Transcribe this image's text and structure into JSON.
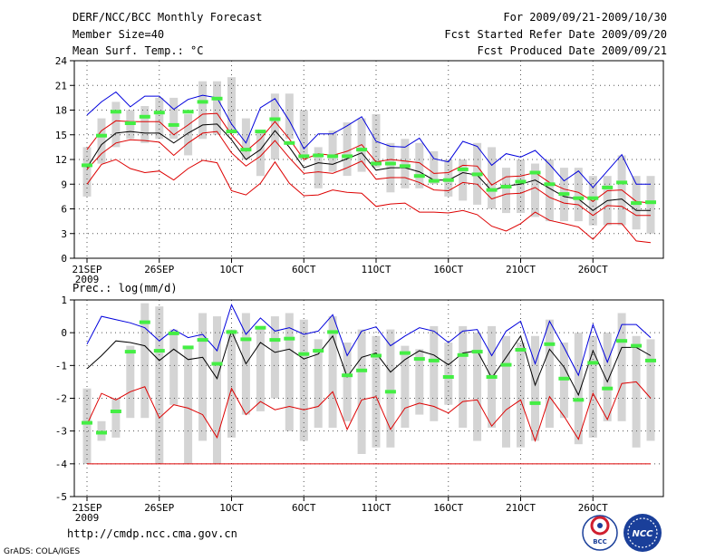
{
  "header": {
    "title": "DERF/NCC/BCC Monthly Forecast",
    "member_size": "Member Size=40",
    "variable": "Mean Surf. Temp.: °C",
    "period": "For 2009/09/21-2009/10/30",
    "started": "Fcst Started Refer Date 2009/09/20",
    "produced": "Fcst Produced Date 2009/09/21"
  },
  "footer": {
    "url": "http://cmdp.ncc.cma.gov.cn",
    "credit": "GrADS: COLA/IGES",
    "logo_bcc": "BCC",
    "logo_ncc": "NCC"
  },
  "colors": {
    "box": "#d4d4d4",
    "median": "#44ee44",
    "mean": "#000000",
    "upper": "#0000dd",
    "lower": "#dd0000",
    "grid": "#555555"
  },
  "chart_data": [
    {
      "type": "box-ensemble",
      "title": "Mean Surf. Temp.: °C",
      "ylim": [
        0,
        24
      ],
      "yticks": [
        "0",
        "3",
        "6",
        "9",
        "12",
        "15",
        "18",
        "21",
        "24"
      ],
      "x_tick_days": [
        1,
        6,
        11,
        16,
        21,
        26,
        31,
        36
      ],
      "xtick_labels": [
        "21SEP",
        "26SEP",
        "1OCT",
        "6OCT",
        "11OCT",
        "16OCT",
        "21OCT",
        "26OCT"
      ],
      "year_label": "2009",
      "days": 40,
      "box_low": [
        7.5,
        11.5,
        13.5,
        14.5,
        14,
        14.5,
        14.5,
        12.5,
        14.5,
        15,
        15.5,
        12,
        10,
        12,
        14.5,
        12,
        8.5,
        10.5,
        10,
        10.5,
        11,
        8,
        8.5,
        8.5,
        9,
        7.5,
        7,
        6.5,
        6,
        5.5,
        5.5,
        5,
        4.5,
        4.5,
        4.5,
        4,
        4,
        4,
        3.5,
        3
      ],
      "box_high": [
        13.5,
        17,
        19,
        18,
        18.5,
        19.5,
        19.5,
        17.5,
        21.5,
        21.5,
        22,
        17,
        15.5,
        20,
        20,
        18,
        13.5,
        15.5,
        16.5,
        17,
        17.5,
        14,
        14.5,
        14,
        13,
        12,
        12,
        14,
        13.5,
        11,
        12,
        11.5,
        12,
        11,
        11,
        10,
        10,
        12.5,
        10,
        10
      ],
      "median": [
        11.3,
        14.9,
        17.8,
        16.4,
        17.2,
        17.7,
        16.2,
        17.8,
        19,
        19.4,
        15.4,
        13.2,
        15.4,
        16.9,
        14,
        12.4,
        12.5,
        12.4,
        12.4,
        13.2,
        11.5,
        11.5,
        11.2,
        10,
        9.4,
        9.5,
        10.8,
        10.2,
        8.3,
        8.7,
        9.3,
        10.4,
        9,
        7.8,
        7.3,
        7.3,
        8.6,
        9.2,
        6.7,
        6.8
      ],
      "series": [
        {
          "name": "mean",
          "values": [
            11,
            13.8,
            15.2,
            15.4,
            15.2,
            15.2,
            14,
            15.2,
            16.2,
            16.3,
            14.4,
            12,
            13.2,
            15.5,
            13.5,
            11,
            11.6,
            11.4,
            12.1,
            12.8,
            10.7,
            11,
            11,
            10.5,
            9.5,
            9.5,
            10.4,
            10.1,
            8.2,
            8.8,
            9,
            9.5,
            8.5,
            7.5,
            7.2,
            5.8,
            7,
            7.2,
            5.8,
            5.8
          ]
        },
        {
          "name": "upper",
          "values": [
            17.4,
            19,
            20.2,
            18.4,
            19.7,
            19.7,
            18.1,
            19.3,
            19.8,
            19.5,
            16.3,
            14,
            18.3,
            19.4,
            16.7,
            13.3,
            15.1,
            15.1,
            16.1,
            17.2,
            14.2,
            13.6,
            13.5,
            14.6,
            12.1,
            11.7,
            14.2,
            13.6,
            11.3,
            12.7,
            12.3,
            13.1,
            11.4,
            9.4,
            10.6,
            8.6,
            10.6,
            12.6,
            9,
            9
          ]
        },
        {
          "name": "lower",
          "values": [
            9,
            11.4,
            12,
            10.9,
            10.4,
            10.6,
            9.5,
            10.9,
            11.9,
            11.6,
            8.2,
            7.7,
            9.1,
            11.7,
            9.1,
            7.6,
            7.7,
            8.3,
            8,
            7.9,
            6.3,
            6.6,
            6.7,
            5.6,
            5.6,
            5.5,
            5.8,
            5.3,
            3.9,
            3.3,
            4.2,
            5.6,
            4.6,
            4.2,
            3.8,
            2.3,
            4.2,
            4.2,
            2.1,
            1.9
          ]
        },
        {
          "name": "red_upper",
          "values": [
            13.2,
            15.5,
            16.7,
            16.6,
            16.6,
            16.6,
            15,
            16.2,
            17.5,
            17.6,
            15,
            13,
            14.5,
            16.6,
            14.5,
            12,
            12.7,
            12.5,
            13,
            13.8,
            11.7,
            12,
            11.8,
            11.6,
            10.3,
            10.4,
            11.3,
            11.2,
            8.9,
            9.9,
            10,
            10.4,
            9.2,
            8.4,
            8,
            6.9,
            8.2,
            8.3,
            6.9,
            6.7
          ]
        },
        {
          "name": "red_lower",
          "values": [
            10.8,
            12.7,
            14,
            14.4,
            14.3,
            14.1,
            12.5,
            14,
            15.2,
            15.4,
            12.8,
            11.2,
            12.4,
            14.3,
            12.2,
            10.3,
            10.5,
            10.3,
            11,
            11.8,
            9.6,
            9.8,
            9.8,
            9.2,
            8.3,
            8.2,
            9.2,
            9,
            7.2,
            7.8,
            7.9,
            8.6,
            7.4,
            6.7,
            6.5,
            5.2,
            6.4,
            6.3,
            5.2,
            5.2
          ]
        }
      ]
    },
    {
      "type": "box-ensemble",
      "title": "Prec.: log(mm/d)",
      "ylim": [
        -5,
        1
      ],
      "yticks": [
        "-5",
        "-4",
        "-3",
        "-2",
        "-1",
        "0",
        "1"
      ],
      "x_tick_days": [
        1,
        6,
        11,
        16,
        21,
        26,
        31,
        36
      ],
      "xtick_labels": [
        "21SEP",
        "26SEP",
        "1OCT",
        "6OCT",
        "11OCT",
        "16OCT",
        "21OCT",
        "26OCT"
      ],
      "year_label": "2009",
      "days": 40,
      "floor": -4,
      "box_low": [
        -4,
        -3.3,
        -3.2,
        -2.6,
        -2.6,
        -4,
        -2.2,
        -4,
        -3.3,
        -4,
        -3.2,
        -2.5,
        -2.4,
        -2,
        -3,
        -3.3,
        -2.9,
        -2.9,
        -2.7,
        -3.7,
        -3.5,
        -3.5,
        -2.9,
        -2.5,
        -2.7,
        -2.2,
        -2.9,
        -3.3,
        -2.9,
        -3.5,
        -3.5,
        -3.3,
        -2.9,
        -2.6,
        -3.4,
        -3.2,
        -2.7,
        -2.7,
        -3.5,
        -3.3
      ],
      "box_high": [
        -1.7,
        -2.7,
        -2,
        -0.4,
        0.9,
        0.8,
        0.1,
        -0.5,
        0.6,
        0.5,
        0.1,
        0.6,
        0.2,
        0.5,
        0.6,
        0.4,
        -0.2,
        0.5,
        -0.3,
        0.1,
        -0.1,
        0.1,
        -0.4,
        -0.5,
        0.2,
        -0.3,
        0.2,
        0,
        0.2,
        -0.1,
        -0.3,
        -0.1,
        0.4,
        -0.3,
        0,
        -0.1,
        0,
        0.6,
        -0.1,
        -0.2
      ],
      "median": [
        -2.75,
        -3.05,
        -2.4,
        -0.58,
        0.32,
        -0.55,
        -0.02,
        -0.45,
        -0.22,
        -0.95,
        0.02,
        -0.2,
        0.15,
        -0.22,
        -0.18,
        -0.65,
        -0.55,
        0.02,
        -1.3,
        -1.15,
        -0.7,
        -1.8,
        -0.62,
        -0.8,
        -0.85,
        -1.35,
        -0.68,
        -0.58,
        -1.35,
        -0.98,
        -0.52,
        -2.15,
        -0.35,
        -1.4,
        -2.05,
        -0.92,
        -1.7,
        -0.25,
        -0.4,
        -0.85
      ],
      "series": [
        {
          "name": "mean",
          "values": [
            -1.1,
            -0.7,
            -0.25,
            -0.3,
            -0.4,
            -0.85,
            -0.5,
            -0.82,
            -0.75,
            -1.4,
            0.05,
            -0.95,
            -0.3,
            -0.6,
            -0.5,
            -0.8,
            -0.65,
            -0.1,
            -1.35,
            -0.75,
            -0.62,
            -1.2,
            -0.82,
            -0.55,
            -0.68,
            -0.98,
            -0.62,
            -0.55,
            -1.38,
            -0.75,
            -0.1,
            -1.6,
            -0.5,
            -1.05,
            -1.9,
            -0.55,
            -1.5,
            -0.45,
            -0.45,
            -0.7
          ]
        },
        {
          "name": "upper",
          "values": [
            -0.35,
            0.5,
            0.4,
            0.3,
            0.15,
            -0.25,
            0.1,
            -0.15,
            -0.05,
            -0.55,
            0.85,
            -0.05,
            0.45,
            0.05,
            0.15,
            -0.05,
            0.05,
            0.55,
            -0.7,
            0.05,
            0.18,
            -0.4,
            -0.1,
            0.15,
            0.05,
            -0.3,
            0.05,
            0.1,
            -0.7,
            0.05,
            0.35,
            -0.95,
            0.35,
            -0.45,
            -1.3,
            0.25,
            -0.9,
            0.25,
            0.25,
            -0.15
          ]
        },
        {
          "name": "lower",
          "values": [
            -2.8,
            -1.85,
            -2.05,
            -1.8,
            -1.65,
            -2.6,
            -2.2,
            -2.3,
            -2.5,
            -3.2,
            -1.7,
            -2.5,
            -2.1,
            -2.35,
            -2.25,
            -2.35,
            -2.25,
            -1.8,
            -2.95,
            -2.05,
            -1.95,
            -2.95,
            -2.3,
            -2.15,
            -2.25,
            -2.45,
            -2.1,
            -2.05,
            -2.85,
            -2.35,
            -2.05,
            -3.3,
            -1.95,
            -2.55,
            -3.25,
            -1.85,
            -2.65,
            -1.55,
            -1.5,
            -2
          ]
        }
      ]
    }
  ]
}
